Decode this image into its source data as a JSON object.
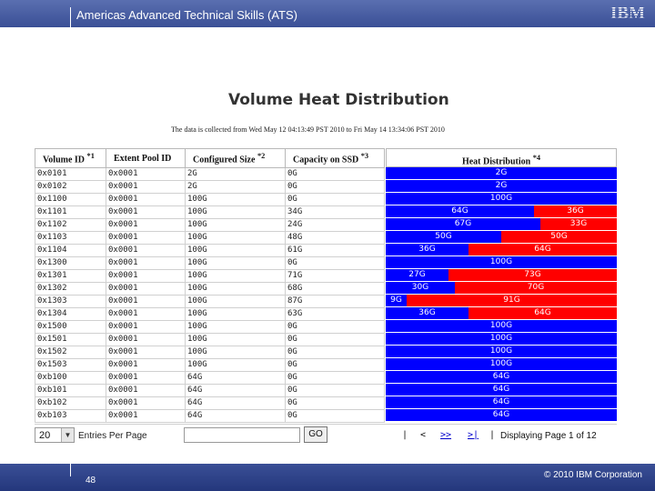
{
  "header": {
    "title": "Americas Advanced Technical Skills (ATS)",
    "logo": "IBM"
  },
  "footer": {
    "page_number": "48",
    "copyright": "© 2010 IBM Corporation"
  },
  "report": {
    "title": "Volume Heat Distribution",
    "subtitle": "The data is collected from Wed May 12 04:13:49 PST 2010 to Fri May 14 13:34:06 PST 2010",
    "columns": {
      "volume_id": "Volume ID",
      "volume_id_note": "*1",
      "extent_pool_id": "Extent Pool ID",
      "configured_size": "Configured Size",
      "configured_size_note": "*2",
      "capacity_on_ssd": "Capacity on SSD",
      "capacity_on_ssd_note": "*3",
      "heat_distribution": "Heat Distribution",
      "heat_distribution_note": "*4"
    },
    "colors": {
      "hot": "#ff0000",
      "cold": "#0000ff"
    },
    "rows": [
      {
        "volume_id": "0x0101",
        "extent_pool_id": "0x0001",
        "configured_size": "2G",
        "capacity_on_ssd": "0G",
        "heat_cold": "2G",
        "heat_hot": "",
        "cold_fraction": 1.0
      },
      {
        "volume_id": "0x0102",
        "extent_pool_id": "0x0001",
        "configured_size": "2G",
        "capacity_on_ssd": "0G",
        "heat_cold": "2G",
        "heat_hot": "",
        "cold_fraction": 1.0
      },
      {
        "volume_id": "0x1100",
        "extent_pool_id": "0x0001",
        "configured_size": "100G",
        "capacity_on_ssd": "0G",
        "heat_cold": "100G",
        "heat_hot": "",
        "cold_fraction": 1.0
      },
      {
        "volume_id": "0x1101",
        "extent_pool_id": "0x0001",
        "configured_size": "100G",
        "capacity_on_ssd": "34G",
        "heat_cold": "64G",
        "heat_hot": "36G",
        "cold_fraction": 0.64
      },
      {
        "volume_id": "0x1102",
        "extent_pool_id": "0x0001",
        "configured_size": "100G",
        "capacity_on_ssd": "24G",
        "heat_cold": "67G",
        "heat_hot": "33G",
        "cold_fraction": 0.67
      },
      {
        "volume_id": "0x1103",
        "extent_pool_id": "0x0001",
        "configured_size": "100G",
        "capacity_on_ssd": "48G",
        "heat_cold": "50G",
        "heat_hot": "50G",
        "cold_fraction": 0.5
      },
      {
        "volume_id": "0x1104",
        "extent_pool_id": "0x0001",
        "configured_size": "100G",
        "capacity_on_ssd": "61G",
        "heat_cold": "36G",
        "heat_hot": "64G",
        "cold_fraction": 0.36
      },
      {
        "volume_id": "0x1300",
        "extent_pool_id": "0x0001",
        "configured_size": "100G",
        "capacity_on_ssd": "0G",
        "heat_cold": "100G",
        "heat_hot": "",
        "cold_fraction": 1.0
      },
      {
        "volume_id": "0x1301",
        "extent_pool_id": "0x0001",
        "configured_size": "100G",
        "capacity_on_ssd": "71G",
        "heat_cold": "27G",
        "heat_hot": "73G",
        "cold_fraction": 0.27
      },
      {
        "volume_id": "0x1302",
        "extent_pool_id": "0x0001",
        "configured_size": "100G",
        "capacity_on_ssd": "68G",
        "heat_cold": "30G",
        "heat_hot": "70G",
        "cold_fraction": 0.3
      },
      {
        "volume_id": "0x1303",
        "extent_pool_id": "0x0001",
        "configured_size": "100G",
        "capacity_on_ssd": "87G",
        "heat_cold": "9G",
        "heat_hot": "91G",
        "cold_fraction": 0.09
      },
      {
        "volume_id": "0x1304",
        "extent_pool_id": "0x0001",
        "configured_size": "100G",
        "capacity_on_ssd": "63G",
        "heat_cold": "36G",
        "heat_hot": "64G",
        "cold_fraction": 0.36
      },
      {
        "volume_id": "0x1500",
        "extent_pool_id": "0x0001",
        "configured_size": "100G",
        "capacity_on_ssd": "0G",
        "heat_cold": "100G",
        "heat_hot": "",
        "cold_fraction": 1.0
      },
      {
        "volume_id": "0x1501",
        "extent_pool_id": "0x0001",
        "configured_size": "100G",
        "capacity_on_ssd": "0G",
        "heat_cold": "100G",
        "heat_hot": "",
        "cold_fraction": 1.0
      },
      {
        "volume_id": "0x1502",
        "extent_pool_id": "0x0001",
        "configured_size": "100G",
        "capacity_on_ssd": "0G",
        "heat_cold": "100G",
        "heat_hot": "",
        "cold_fraction": 1.0
      },
      {
        "volume_id": "0x1503",
        "extent_pool_id": "0x0001",
        "configured_size": "100G",
        "capacity_on_ssd": "0G",
        "heat_cold": "100G",
        "heat_hot": "",
        "cold_fraction": 1.0
      },
      {
        "volume_id": "0xb100",
        "extent_pool_id": "0x0001",
        "configured_size": "64G",
        "capacity_on_ssd": "0G",
        "heat_cold": "64G",
        "heat_hot": "",
        "cold_fraction": 1.0
      },
      {
        "volume_id": "0xb101",
        "extent_pool_id": "0x0001",
        "configured_size": "64G",
        "capacity_on_ssd": "0G",
        "heat_cold": "64G",
        "heat_hot": "",
        "cold_fraction": 1.0
      },
      {
        "volume_id": "0xb102",
        "extent_pool_id": "0x0001",
        "configured_size": "64G",
        "capacity_on_ssd": "0G",
        "heat_cold": "64G",
        "heat_hot": "",
        "cold_fraction": 1.0
      },
      {
        "volume_id": "0xb103",
        "extent_pool_id": "0x0001",
        "configured_size": "64G",
        "capacity_on_ssd": "0G",
        "heat_cold": "64G",
        "heat_hot": "",
        "cold_fraction": 1.0
      }
    ]
  },
  "pagination": {
    "entries_value": "20",
    "entries_label": "Entries Per Page",
    "go_input_value": "",
    "go_label": "GO",
    "first": "|",
    "prev": "<",
    "next": ">>",
    "last": ">|",
    "display_text": "Displaying Page 1 of 12"
  }
}
